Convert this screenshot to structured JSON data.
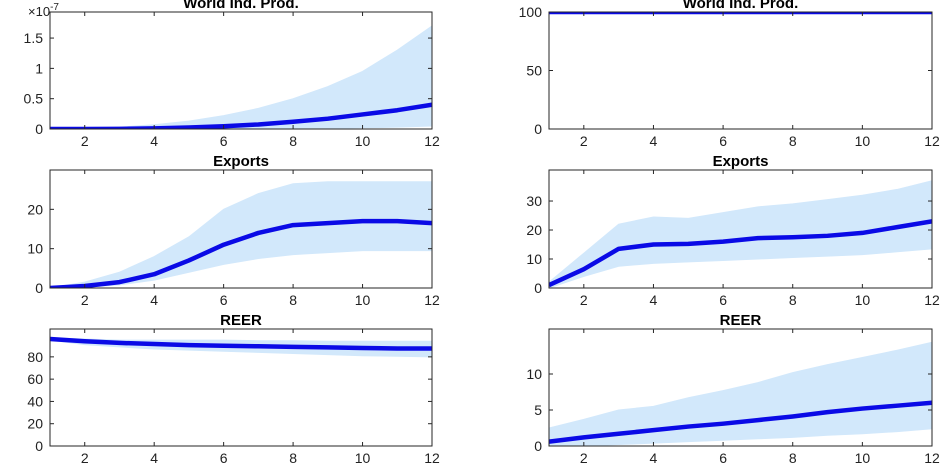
{
  "chart_data": [
    {
      "type": "line",
      "title": "World Ind. Prod.",
      "x": [
        1,
        2,
        3,
        4,
        5,
        6,
        7,
        8,
        9,
        10,
        11,
        12
      ],
      "xlim": [
        1,
        12
      ],
      "xticks": [
        2,
        4,
        6,
        8,
        10,
        12
      ],
      "ylim": [
        0,
        1.93
      ],
      "yticks": [
        0,
        0.5,
        1,
        1.5
      ],
      "y_multiplier": {
        "base": "×10",
        "exponent": "-7"
      },
      "band": {
        "color": "#d2e8fb",
        "upper": [
          0,
          0.01,
          0.03,
          0.07,
          0.13,
          0.22,
          0.34,
          0.5,
          0.7,
          0.95,
          1.3,
          1.7
        ],
        "lower": [
          0,
          0,
          0,
          0,
          0,
          0,
          0,
          0,
          0.01,
          0.02,
          0.03,
          0.05
        ]
      },
      "series": [
        {
          "color": "#0a0ae6",
          "values": [
            0,
            0,
            0.003,
            0.01,
            0.025,
            0.045,
            0.075,
            0.12,
            0.17,
            0.24,
            0.31,
            0.4
          ]
        }
      ]
    },
    {
      "type": "line",
      "title": "World Ind. Prod.",
      "x": [
        1,
        2,
        3,
        4,
        5,
        6,
        7,
        8,
        9,
        10,
        11,
        12
      ],
      "xlim": [
        1,
        12
      ],
      "xticks": [
        2,
        4,
        6,
        8,
        10,
        12
      ],
      "ylim": [
        0,
        100
      ],
      "yticks": [
        0,
        50,
        100
      ],
      "band": {
        "color": "#d2e8fb",
        "upper": [
          100,
          100,
          100,
          100,
          100,
          100,
          100,
          100,
          100,
          100,
          100,
          100
        ],
        "lower": [
          100,
          100,
          100,
          100,
          100,
          100,
          100,
          100,
          100,
          100,
          100,
          100
        ]
      },
      "series": [
        {
          "color": "#0a0ae6",
          "values": [
            100,
            100,
            100,
            100,
            100,
            100,
            100,
            100,
            100,
            100,
            100,
            100
          ]
        }
      ]
    },
    {
      "type": "line",
      "title": "Exports",
      "x": [
        1,
        2,
        3,
        4,
        5,
        6,
        7,
        8,
        9,
        10,
        11,
        12
      ],
      "xlim": [
        1,
        12
      ],
      "xticks": [
        2,
        4,
        6,
        8,
        10,
        12
      ],
      "ylim": [
        0,
        30
      ],
      "yticks": [
        0,
        10,
        20
      ],
      "band": {
        "color": "#d2e8fb",
        "upper": [
          0,
          1.5,
          4,
          8,
          13,
          20,
          24,
          26.5,
          27,
          27,
          27,
          27
        ],
        "lower": [
          0,
          0.2,
          0.8,
          2,
          4,
          6,
          7.5,
          8.5,
          9,
          9.5,
          9.5,
          9.5
        ]
      },
      "series": [
        {
          "color": "#0a0ae6",
          "values": [
            0,
            0.5,
            1.5,
            3.5,
            7,
            11,
            14,
            16,
            16.5,
            17,
            17,
            16.5
          ]
        }
      ]
    },
    {
      "type": "line",
      "title": "Exports",
      "x": [
        1,
        2,
        3,
        4,
        5,
        6,
        7,
        8,
        9,
        10,
        11,
        12
      ],
      "xlim": [
        1,
        12
      ],
      "xticks": [
        2,
        4,
        6,
        8,
        10,
        12
      ],
      "ylim": [
        0,
        40.7
      ],
      "yticks": [
        0,
        10,
        20,
        30
      ],
      "band": {
        "color": "#d2e8fb",
        "upper": [
          2,
          12,
          22,
          24.5,
          24,
          26,
          28,
          29,
          30.5,
          32,
          34,
          37
        ],
        "lower": [
          0,
          4,
          7.5,
          8.5,
          9,
          9.5,
          10,
          10.5,
          11,
          11.5,
          12.5,
          13.5
        ]
      },
      "series": [
        {
          "color": "#0a0ae6",
          "values": [
            1,
            6.5,
            13.5,
            15,
            15.2,
            16,
            17.2,
            17.5,
            18,
            19,
            21,
            23
          ]
        }
      ]
    },
    {
      "type": "line",
      "title": "REER",
      "x": [
        1,
        2,
        3,
        4,
        5,
        6,
        7,
        8,
        9,
        10,
        11,
        12
      ],
      "xlim": [
        1,
        12
      ],
      "xticks": [
        2,
        4,
        6,
        8,
        10,
        12
      ],
      "ylim": [
        0,
        105
      ],
      "yticks": [
        0,
        20,
        40,
        60,
        80
      ],
      "band": {
        "color": "#d2e8fb",
        "upper": [
          97,
          96,
          95,
          95,
          95,
          95,
          94.5,
          94.5,
          94,
          94,
          94,
          94
        ],
        "lower": [
          95,
          91,
          89,
          87,
          86,
          85,
          84,
          83,
          82,
          81,
          80.5,
          80
        ]
      },
      "series": [
        {
          "color": "#0a0ae6",
          "values": [
            96,
            94,
            92.5,
            91.5,
            90.5,
            90,
            89.5,
            89,
            88.5,
            88,
            87.5,
            87.5
          ]
        }
      ]
    },
    {
      "type": "line",
      "title": "REER",
      "x": [
        1,
        2,
        3,
        4,
        5,
        6,
        7,
        8,
        9,
        10,
        11,
        12
      ],
      "xlim": [
        1,
        12
      ],
      "xticks": [
        2,
        4,
        6,
        8,
        10,
        12
      ],
      "ylim": [
        0,
        16.25
      ],
      "yticks": [
        0,
        5,
        10
      ],
      "band": {
        "color": "#d2e8fb",
        "upper": [
          2.5,
          3.7,
          5,
          5.5,
          6.7,
          7.7,
          8.8,
          10.2,
          11.3,
          12.3,
          13.3,
          14.4
        ],
        "lower": [
          0,
          0,
          0.2,
          0.4,
          0.6,
          0.8,
          1,
          1.2,
          1.5,
          1.7,
          2,
          2.4
        ]
      },
      "series": [
        {
          "color": "#0a0ae6",
          "values": [
            0.6,
            1.2,
            1.7,
            2.2,
            2.7,
            3.1,
            3.6,
            4.1,
            4.7,
            5.2,
            5.6,
            6
          ]
        }
      ]
    }
  ]
}
